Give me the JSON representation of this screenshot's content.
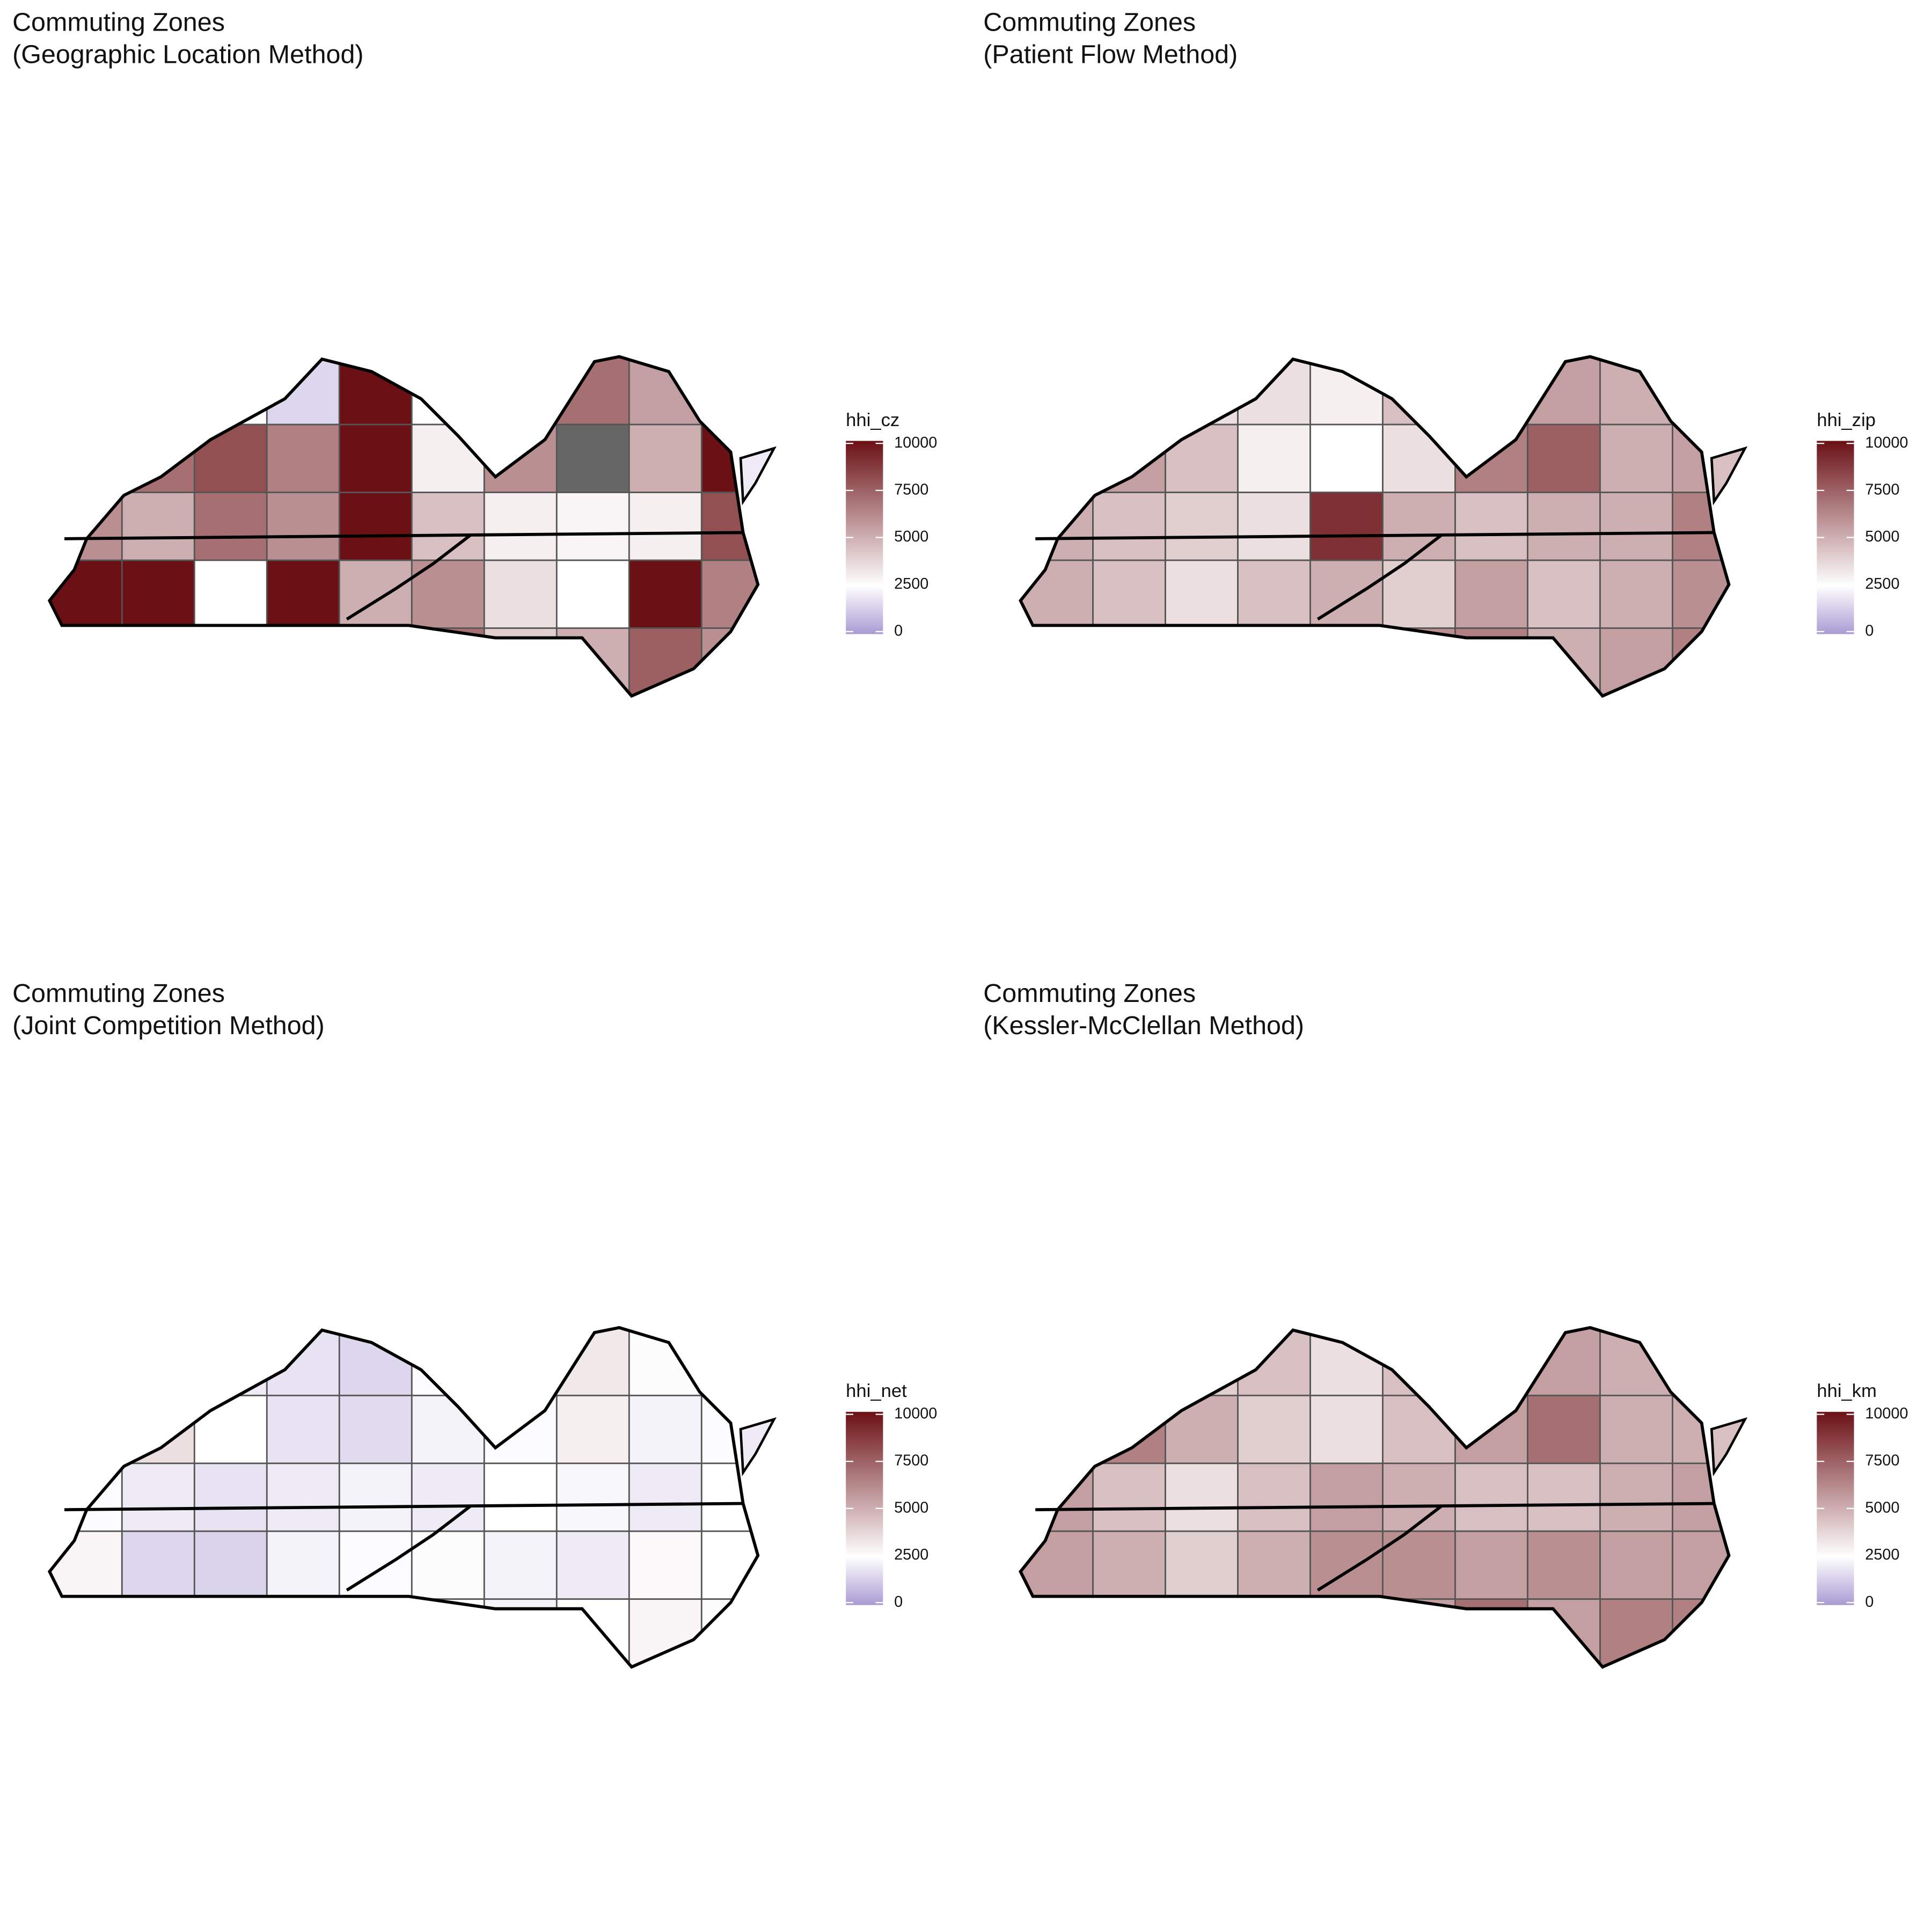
{
  "panels": [
    {
      "title_lines": [
        "Commuting Zones",
        "(Geographic Location Method)"
      ],
      "legend_title": "hhi_cz",
      "values": [
        2500,
        2500,
        2500,
        1500,
        10000,
        2500,
        2500,
        7000,
        5500,
        2000,
        3000,
        7000,
        8000,
        6500,
        10000,
        3000,
        6000,
        null,
        5000,
        10000,
        6000,
        5000,
        7000,
        6000,
        10000,
        4500,
        3000,
        2800,
        3000,
        8000,
        10000,
        10000,
        2500,
        10000,
        5000,
        6000,
        3500,
        2500,
        10000,
        6500,
        3500,
        6500,
        7000,
        2500,
        3000,
        7000,
        4000,
        5000,
        7500,
        6000
      ]
    },
    {
      "title_lines": [
        "Commuting Zones",
        "(Patient Flow Method)"
      ],
      "legend_title": "hhi_zip",
      "values": [
        4500,
        4000,
        3500,
        3500,
        3000,
        4500,
        5000,
        5500,
        5000,
        4500,
        4500,
        5500,
        4500,
        3000,
        2500,
        3500,
        6500,
        7500,
        5000,
        5500,
        5000,
        4500,
        4000,
        3500,
        9000,
        5000,
        4500,
        5000,
        5000,
        6500,
        5000,
        4500,
        3500,
        4500,
        5000,
        4000,
        5500,
        4500,
        5000,
        6000,
        4500,
        5500,
        5000,
        4000,
        5500,
        6000,
        6500,
        5000,
        5500,
        6500
      ]
    },
    {
      "title_lines": [
        "Commuting Zones",
        "(Joint Competition Method)"
      ],
      "legend_title": "hhi_net",
      "values": [
        2300,
        2200,
        2000,
        1800,
        1500,
        2400,
        2500,
        3200,
        2600,
        2000,
        2500,
        3500,
        2500,
        1800,
        1600,
        2200,
        2400,
        3000,
        2200,
        2400,
        2400,
        2000,
        1800,
        2000,
        2200,
        2000,
        2500,
        2300,
        2000,
        2500,
        2800,
        1500,
        1400,
        2200,
        2400,
        2600,
        2200,
        2000,
        2700,
        2500,
        2700,
        3000,
        2600,
        2500,
        3500,
        2400,
        2200,
        2500,
        2800,
        2600
      ]
    },
    {
      "title_lines": [
        "Commuting Zones",
        "(Kessler-McClellan Method)"
      ],
      "legend_title": "hhi_km",
      "values": [
        5000,
        4500,
        4000,
        4500,
        3500,
        4500,
        5000,
        5500,
        5000,
        4500,
        5500,
        6500,
        5000,
        4000,
        3500,
        4500,
        5500,
        7000,
        5000,
        5000,
        5500,
        4500,
        3500,
        4500,
        5500,
        5000,
        4500,
        4500,
        5000,
        5500,
        5500,
        5000,
        4000,
        5000,
        6000,
        6000,
        5500,
        6000,
        5500,
        5500,
        4500,
        5000,
        5500,
        4500,
        5000,
        5500,
        7000,
        5500,
        6500,
        6500
      ]
    }
  ],
  "scale": {
    "limits": [
      0,
      10000
    ],
    "midpoint": 2500,
    "low": "#a99bd3",
    "mid": "#ffffff",
    "high": "#6b1015",
    "na_color": "#666666",
    "ticks": [
      0,
      2500,
      5000,
      7500,
      10000
    ]
  }
}
